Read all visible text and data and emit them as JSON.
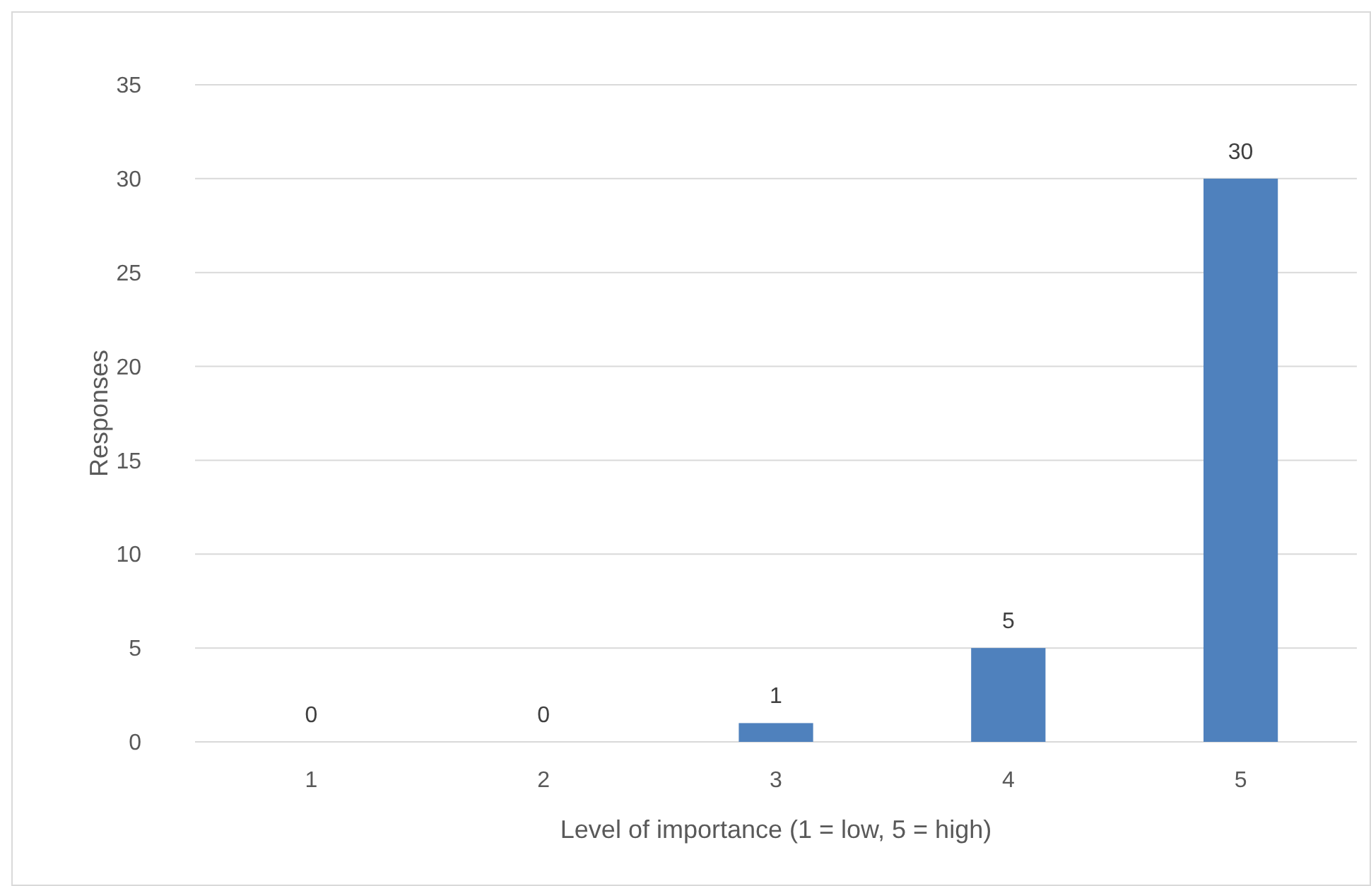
{
  "chart_data": {
    "type": "bar",
    "xlabel": "Level of importance (1 = low, 5 = high)",
    "ylabel": "Responses",
    "categories": [
      "1",
      "2",
      "3",
      "4",
      "5"
    ],
    "values": [
      0,
      0,
      1,
      5,
      30
    ],
    "color": "#4f81bd",
    "ylim": [
      0,
      35
    ],
    "yticks": [
      0,
      5,
      10,
      15,
      20,
      25,
      30,
      35
    ],
    "grid": "y",
    "data_labels": true
  }
}
